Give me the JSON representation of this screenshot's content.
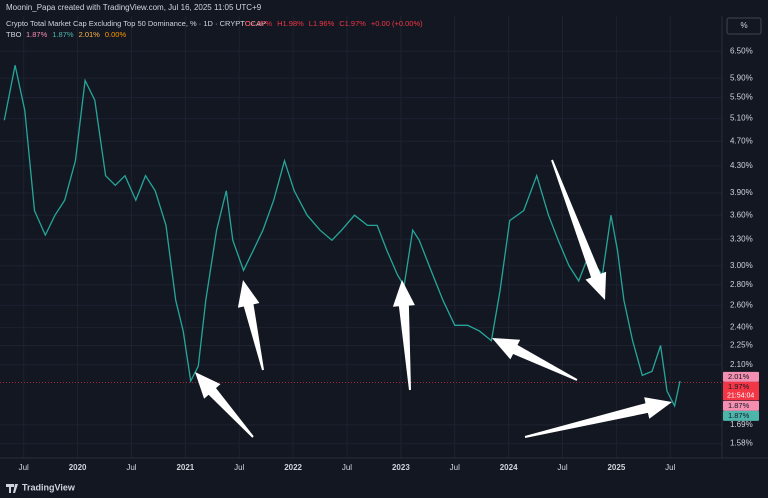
{
  "header": {
    "credit": "Moonin_Papa created with TradingView.com, Jul 16, 2025 11:05 UTC+9",
    "scale_button": "%"
  },
  "legend": {
    "ohlc": [
      "O1.97%",
      "H1.98%",
      "L1.96%",
      "C1.97%",
      "+0.00 (+0.00%)"
    ]
  },
  "indicator": {
    "name": "TBO",
    "values": [
      "1.87%",
      "1.87%",
      "2.01%",
      "0.00%"
    ]
  },
  "price_badges": [
    {
      "value": 2.01,
      "label": "2.01%",
      "color": "#f48fb1"
    },
    {
      "value": 1.97,
      "label": "1.97%",
      "color": "#f23645"
    },
    {
      "value": 1.87,
      "label": "1.87%",
      "color": "#f48fb1"
    },
    {
      "value": 1.87,
      "label": "1.87%",
      "color": "#4db6ac"
    }
  ],
  "countdown": "21:54:04",
  "footer": {
    "brand": "TradingView"
  },
  "chart_data": {
    "type": "line",
    "title": "Crypto Total Market Cap Excluding Top 50 Dominance, % · 1D · CRYPTOCAP",
    "color": "#26a69a",
    "log_scale": true,
    "grid": true,
    "x": [
      2019.32,
      2019.42,
      2019.51,
      2019.6,
      2019.7,
      2019.79,
      2019.88,
      2019.98,
      2020.07,
      2020.16,
      2020.26,
      2020.35,
      2020.44,
      2020.54,
      2020.63,
      2020.72,
      2020.82,
      2020.91,
      2020.98,
      2021.05,
      2021.12,
      2021.19,
      2021.29,
      2021.38,
      2021.44,
      2021.54,
      2021.63,
      2021.72,
      2021.82,
      2021.92,
      2022.01,
      2022.13,
      2022.25,
      2022.36,
      2022.45,
      2022.57,
      2022.69,
      2022.78,
      2022.87,
      2022.97,
      2023.03,
      2023.11,
      2023.17,
      2023.28,
      2023.39,
      2023.5,
      2023.62,
      2023.73,
      2023.84,
      2023.92,
      2024.01,
      2024.14,
      2024.26,
      2024.37,
      2024.46,
      2024.56,
      2024.65,
      2024.74,
      2024.87,
      2024.95,
      2025.01,
      2025.07,
      2025.15,
      2025.24,
      2025.33,
      2025.41,
      2025.47,
      2025.54,
      2025.59
    ],
    "values": [
      5.07,
      6.18,
      5.25,
      3.66,
      3.35,
      3.6,
      3.8,
      4.38,
      5.85,
      5.45,
      4.15,
      4.01,
      4.15,
      3.8,
      4.15,
      3.93,
      3.47,
      2.65,
      2.37,
      1.98,
      2.09,
      2.65,
      3.41,
      3.93,
      3.29,
      2.95,
      3.17,
      3.41,
      3.8,
      4.38,
      3.93,
      3.6,
      3.41,
      3.29,
      3.41,
      3.6,
      3.47,
      3.47,
      3.17,
      2.9,
      2.79,
      3.41,
      3.29,
      2.95,
      2.65,
      2.42,
      2.42,
      2.37,
      2.29,
      2.74,
      3.53,
      3.66,
      4.15,
      3.6,
      3.29,
      3.0,
      2.84,
      3.11,
      2.9,
      3.6,
      3.17,
      2.65,
      2.29,
      2.02,
      2.05,
      2.25,
      1.91,
      1.81,
      1.98
    ],
    "xlim": [
      2019.28,
      2025.98
    ],
    "xticks": [
      {
        "value": 2019.5,
        "label": "Jul"
      },
      2020,
      {
        "value": 2020.5,
        "label": "Jul"
      },
      2021,
      {
        "value": 2021.5,
        "label": "Jul"
      },
      2022,
      {
        "value": 2022.5,
        "label": "Jul"
      },
      2023,
      {
        "value": 2023.5,
        "label": "Jul"
      },
      2024,
      {
        "value": 2024.5,
        "label": "Jul"
      },
      2025,
      {
        "value": 2025.5,
        "label": "Jul"
      }
    ],
    "ylim": [
      1.5,
      6.77
    ],
    "yticks": [
      {
        "value": 1.58,
        "label": "1.58%"
      },
      {
        "value": 1.69,
        "label": "1.69%"
      },
      {
        "value": 2.1,
        "label": "2.10%"
      },
      {
        "value": 2.25,
        "label": "2.25%"
      },
      {
        "value": 2.4,
        "label": "2.40%"
      },
      {
        "value": 2.6,
        "label": "2.60%"
      },
      {
        "value": 2.8,
        "label": "2.80%"
      },
      {
        "value": 3.0,
        "label": "3.00%"
      },
      {
        "value": 3.3,
        "label": "3.30%"
      },
      {
        "value": 3.6,
        "label": "3.60%"
      },
      {
        "value": 3.9,
        "label": "3.90%"
      },
      {
        "value": 4.3,
        "label": "4.30%"
      },
      {
        "value": 4.7,
        "label": "4.70%"
      },
      {
        "value": 5.1,
        "label": "5.10%"
      },
      {
        "value": 5.5,
        "label": "5.50%"
      },
      {
        "value": 5.9,
        "label": "5.90%"
      },
      {
        "value": 6.5,
        "label": "6.50%"
      }
    ]
  }
}
